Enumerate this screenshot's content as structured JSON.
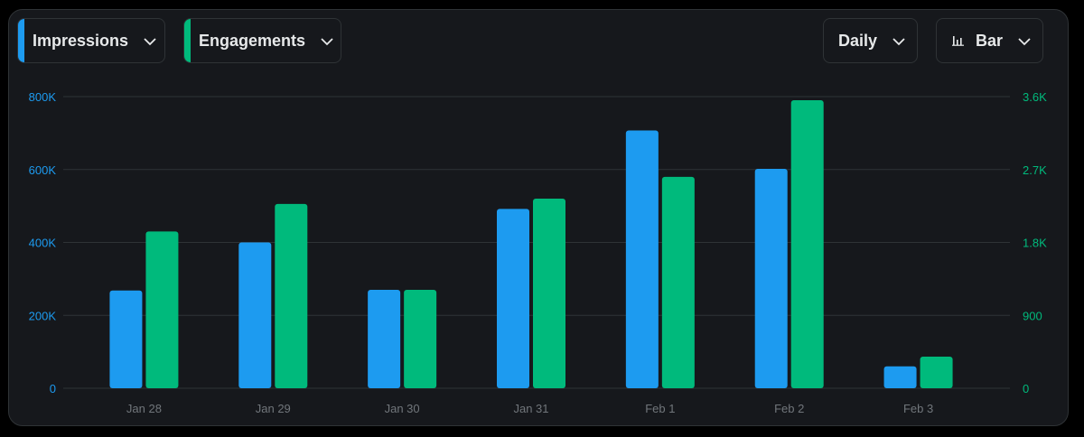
{
  "controls": {
    "metric1": {
      "label": "Impressions",
      "color": "#1d9bf0"
    },
    "metric2": {
      "label": "Engagements",
      "color": "#00ba7c"
    },
    "interval": {
      "label": "Daily"
    },
    "chart_type": {
      "label": "Bar",
      "icon": "bar-chart-icon"
    }
  },
  "chart_data": {
    "type": "bar",
    "categories": [
      "Jan 28",
      "Jan 29",
      "Jan 30",
      "Jan 31",
      "Feb 1",
      "Feb 2",
      "Feb 3"
    ],
    "series": [
      {
        "name": "Impressions",
        "axis": "left",
        "color": "#1d9bf0",
        "values": [
          268000,
          400000,
          270000,
          492000,
          707000,
          602000,
          60000
        ]
      },
      {
        "name": "Engagements",
        "axis": "right",
        "color": "#00ba7c",
        "values": [
          1935,
          2275,
          1215,
          2340,
          2610,
          3555,
          390
        ]
      }
    ],
    "y_left": {
      "ticks": [
        "0",
        "200K",
        "400K",
        "600K",
        "800K"
      ],
      "ylim": [
        0,
        800000
      ],
      "color": "#1d9bf0"
    },
    "y_right": {
      "ticks": [
        "0",
        "900",
        "1.8K",
        "2.7K",
        "3.6K"
      ],
      "ylim": [
        0,
        3600
      ],
      "color": "#00ba7c"
    },
    "grid": true,
    "legend": "top-left"
  }
}
